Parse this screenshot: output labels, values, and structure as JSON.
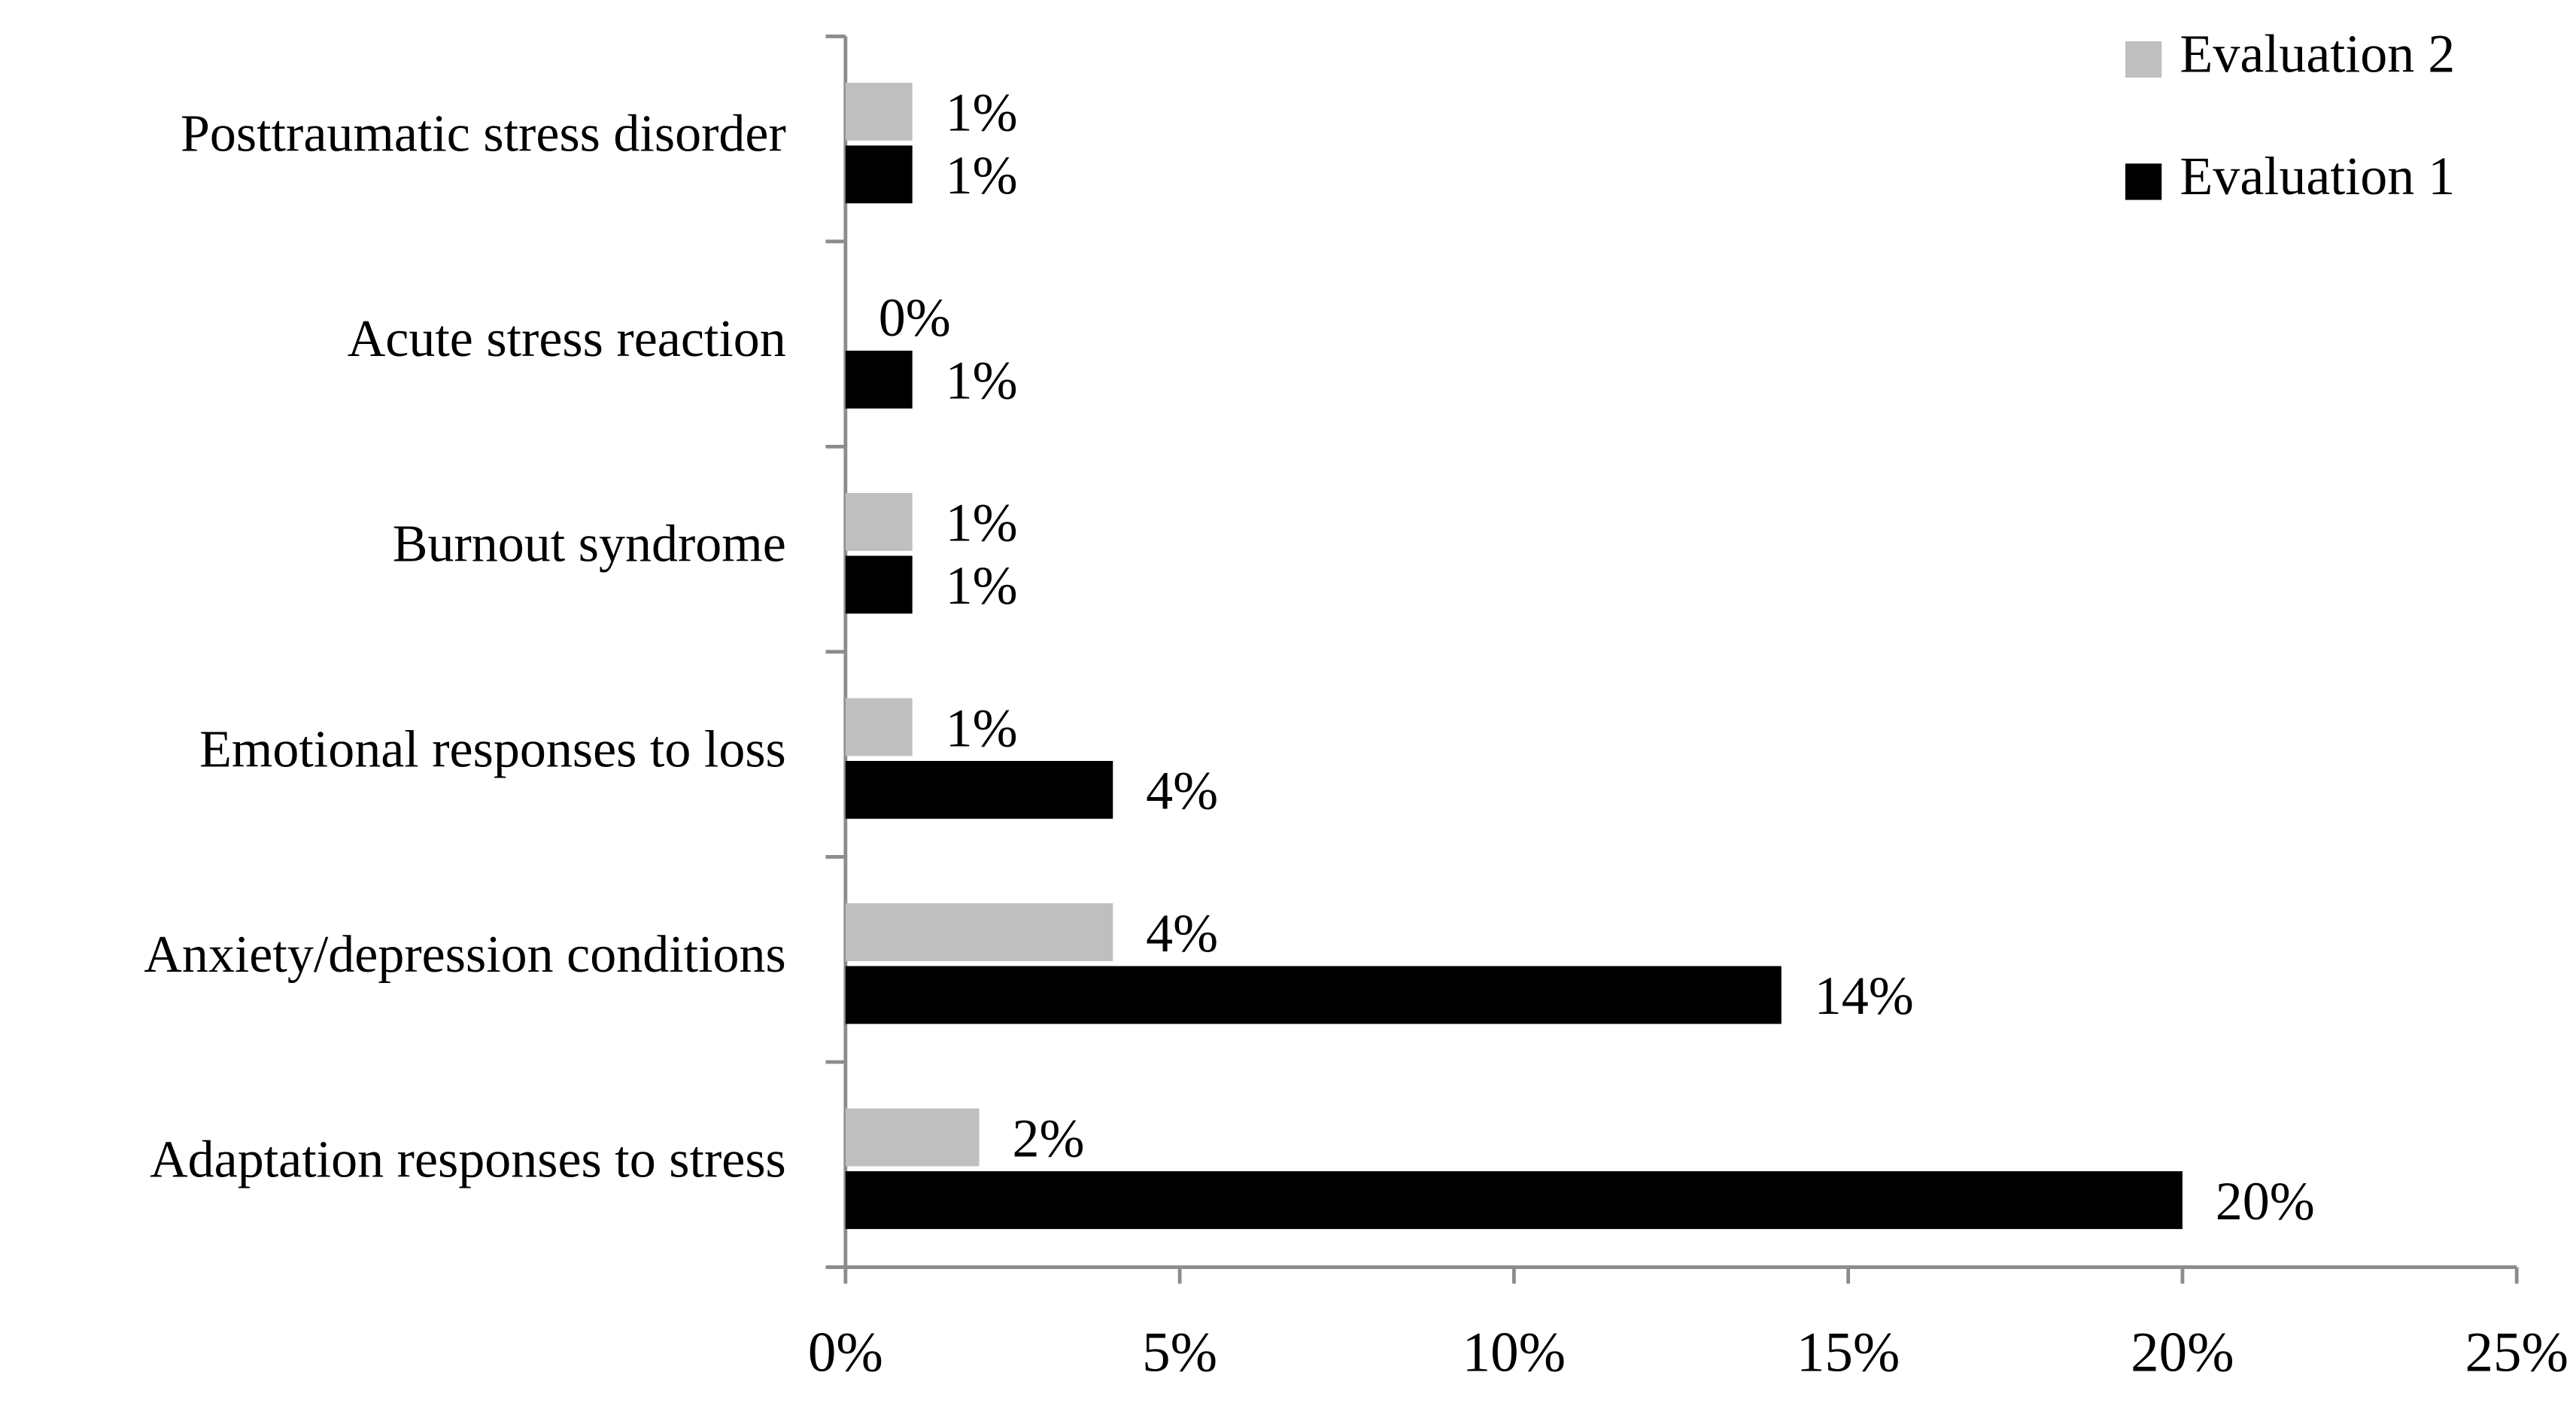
{
  "chart_data": {
    "type": "hbar",
    "categories": [
      "Posttraumatic stress disorder",
      "Acute stress reaction",
      "Burnout syndrome",
      "Emotional responses to loss",
      "Anxiety/depression conditions",
      "Adaptation responses to stress"
    ],
    "series": [
      {
        "name": "Evaluation 2",
        "color": "#bfbfbf",
        "values": [
          1,
          0,
          1,
          1,
          4,
          2
        ],
        "value_labels": [
          "1%",
          "0%",
          "1%",
          "1%",
          "4%",
          "2%"
        ]
      },
      {
        "name": "Evaluation 1",
        "color": "#000000",
        "values": [
          1,
          1,
          1,
          4,
          14,
          20
        ],
        "value_labels": [
          "1%",
          "1%",
          "1%",
          "4%",
          "14%",
          "20%"
        ]
      }
    ],
    "xlim": [
      0,
      25
    ],
    "xticks": [
      {
        "value": 0,
        "label": "0%"
      },
      {
        "value": 5,
        "label": "5%"
      },
      {
        "value": 10,
        "label": "10%"
      },
      {
        "value": 15,
        "label": "15%"
      },
      {
        "value": 20,
        "label": "20%"
      },
      {
        "value": 25,
        "label": "25%"
      }
    ],
    "legend": "top-right",
    "grid": false
  }
}
